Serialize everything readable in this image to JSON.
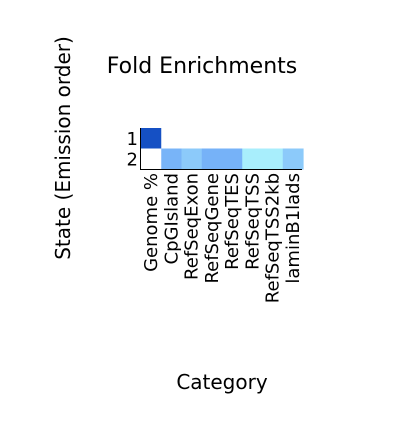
{
  "chart_data": {
    "type": "heatmap",
    "title": "Fold Enrichments",
    "xlabel": "Category",
    "ylabel": "State (Emission order)",
    "columns": [
      "Genome %",
      "CpGIsland",
      "RefSeqExon",
      "RefSeqGene",
      "RefSeqTES",
      "RefSeqTSS",
      "RefSeqTSS2kb",
      "laminB1lads"
    ],
    "rows": [
      "1",
      "2"
    ],
    "cell_colors": [
      [
        "#1550c4",
        "#ffffff",
        "#ffffff",
        "#ffffff",
        "#ffffff",
        "#ffffff",
        "#ffffff",
        "#ffffff"
      ],
      [
        "#ffffff",
        "#78b4f8",
        "#8ccafa",
        "#76b2f8",
        "#76b2f8",
        "#a8eefc",
        "#a8eefc",
        "#8ccafa"
      ]
    ],
    "grid": false,
    "legend": "none"
  }
}
